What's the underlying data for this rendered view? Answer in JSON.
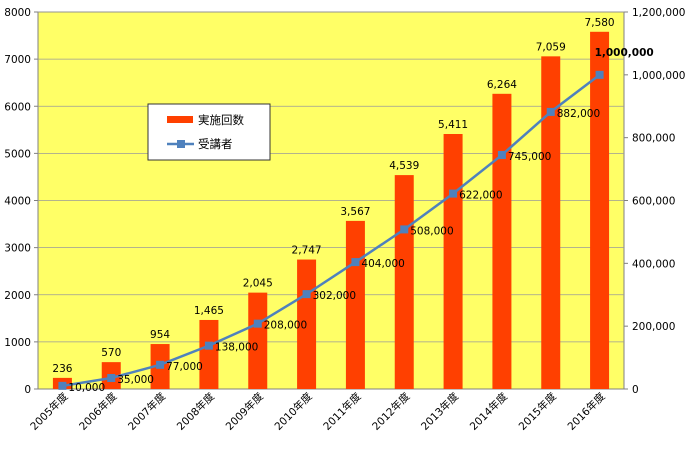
{
  "chart_data": {
    "type": "bar",
    "categories": [
      "2005年度",
      "2006年度",
      "2007年度",
      "2008年度",
      "2009年度",
      "2010年度",
      "2011年度",
      "2012年度",
      "2013年度",
      "2014年度",
      "2015年度",
      "2016年度"
    ],
    "series": [
      {
        "name": "実施回数",
        "type": "bar",
        "axis": "left",
        "values": [
          236,
          570,
          954,
          1465,
          2045,
          2747,
          3567,
          4539,
          5411,
          6264,
          7059,
          7580
        ],
        "labels": [
          "236",
          "570",
          "954",
          "1,465",
          "2,045",
          "2,747",
          "3,567",
          "4,539",
          "5,411",
          "6,264",
          "7,059",
          "7,580"
        ]
      },
      {
        "name": "受講者",
        "type": "line",
        "axis": "right",
        "values": [
          10000,
          35000,
          77000,
          138000,
          208000,
          302000,
          404000,
          508000,
          622000,
          745000,
          882000,
          1000000
        ],
        "labels": [
          "10,000",
          "35,000",
          "77,000",
          "138,000",
          "208,000",
          "302,000",
          "404,000",
          "508,000",
          "622,000",
          "745,000",
          "882,000",
          "1,000,000"
        ]
      }
    ],
    "ylim_left": [
      0,
      8000
    ],
    "ylim_right": [
      0,
      1200000
    ],
    "left_ticks": [
      "0",
      "1000",
      "2000",
      "3000",
      "4000",
      "5000",
      "6000",
      "7000",
      "8000"
    ],
    "right_ticks": [
      "0",
      "200,000",
      "400,000",
      "600,000",
      "800,000",
      "1,000,000",
      "1,200,000"
    ],
    "legend": [
      "実施回数",
      "受講者"
    ],
    "colors": {
      "plot_background": "#FFFF66",
      "bar": "#FF4000",
      "line": "#4F81BD",
      "grid": "#9a9a9a"
    },
    "grid": true,
    "legend_position": "upper-left inside plot"
  }
}
